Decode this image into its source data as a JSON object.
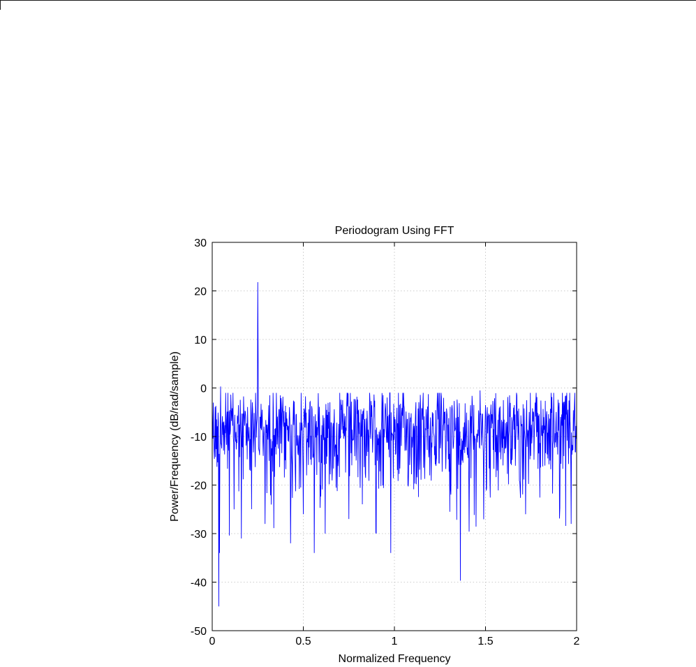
{
  "chart_data": {
    "type": "line",
    "title": "Periodogram Using FFT",
    "xlabel": "Normalized Frequency",
    "ylabel": "Power/Frequency (dB/rad/sample)",
    "xlim": [
      0,
      2
    ],
    "ylim": [
      -50,
      30
    ],
    "xticks": [
      0,
      0.5,
      1,
      1.5,
      2
    ],
    "xtick_labels": [
      "0",
      "0.5",
      "1",
      "1.5",
      "2"
    ],
    "yticks": [
      -50,
      -40,
      -30,
      -20,
      -10,
      0,
      10,
      20,
      30
    ],
    "ytick_labels": [
      "-50",
      "-40",
      "-30",
      "-20",
      "-10",
      "0",
      "10",
      "20",
      "30"
    ],
    "grid": true,
    "line_color": "#0000ff",
    "series": [
      {
        "points_count": 1000,
        "baseline_db": -9.5,
        "noise_spread_db": 4.0,
        "features": [
          {
            "x": 0.0,
            "y": -3
          },
          {
            "x": 0.035,
            "y": -45
          },
          {
            "x": 0.04,
            "y": -34
          },
          {
            "x": 0.045,
            "y": 0.3
          },
          {
            "x": 0.25,
            "y": 21.8
          },
          {
            "x": 0.252,
            "y": 7
          },
          {
            "x": 0.16,
            "y": -31
          },
          {
            "x": 0.12,
            "y": -25
          },
          {
            "x": 0.29,
            "y": -28
          },
          {
            "x": 0.43,
            "y": -32
          },
          {
            "x": 0.5,
            "y": -26
          },
          {
            "x": 0.56,
            "y": -34
          },
          {
            "x": 0.62,
            "y": -30
          },
          {
            "x": 0.75,
            "y": -27
          },
          {
            "x": 0.9,
            "y": -30
          },
          {
            "x": 0.98,
            "y": -34
          },
          {
            "x": 1.47,
            "y": -0.5
          },
          {
            "x": 1.72,
            "y": -26
          },
          {
            "x": 1.97,
            "y": -28
          },
          {
            "x": 2.0,
            "y": -6
          }
        ]
      }
    ]
  }
}
